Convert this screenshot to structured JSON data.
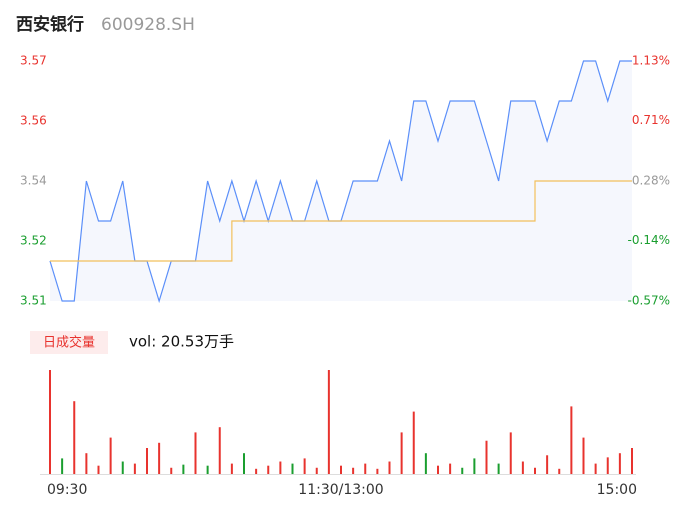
{
  "chart_data": {
    "type": "intraday",
    "title": "西安银行",
    "subtitle": "600928.SH",
    "x": [
      0,
      5,
      10,
      15,
      20,
      25,
      30,
      35,
      40,
      45,
      50,
      55,
      60,
      65,
      70,
      75,
      80,
      85,
      90,
      95,
      100,
      105,
      110,
      115,
      120,
      125,
      130,
      135,
      140,
      145,
      150,
      155,
      160,
      165,
      170,
      175,
      180,
      185,
      190,
      195,
      200,
      205,
      210,
      215,
      220,
      225,
      230,
      235,
      240
    ],
    "xlim": [
      0,
      240
    ],
    "xticks": [
      {
        "value": 0,
        "label": "09:30"
      },
      {
        "value": 120,
        "label": "11:30/13:00"
      },
      {
        "value": 240,
        "label": "15:00"
      }
    ],
    "series": [
      {
        "name": "price",
        "color": "#5b8ff9",
        "values": [
          3.52,
          3.51,
          3.51,
          3.54,
          3.53,
          3.53,
          3.54,
          3.52,
          3.52,
          3.51,
          3.52,
          3.52,
          3.52,
          3.54,
          3.53,
          3.54,
          3.53,
          3.54,
          3.53,
          3.54,
          3.53,
          3.53,
          3.54,
          3.53,
          3.53,
          3.54,
          3.54,
          3.54,
          3.55,
          3.54,
          3.56,
          3.56,
          3.55,
          3.56,
          3.56,
          3.56,
          3.55,
          3.54,
          3.56,
          3.56,
          3.56,
          3.55,
          3.56,
          3.56,
          3.57,
          3.57,
          3.56,
          3.57,
          3.57
        ]
      },
      {
        "name": "average",
        "color": "#f2c05c",
        "values": [
          3.52,
          3.52,
          3.52,
          3.52,
          3.52,
          3.52,
          3.52,
          3.52,
          3.52,
          3.52,
          3.52,
          3.52,
          3.52,
          3.52,
          3.52,
          3.53,
          3.53,
          3.53,
          3.53,
          3.53,
          3.53,
          3.53,
          3.53,
          3.53,
          3.53,
          3.53,
          3.53,
          3.53,
          3.53,
          3.53,
          3.53,
          3.53,
          3.53,
          3.53,
          3.53,
          3.53,
          3.53,
          3.53,
          3.53,
          3.53,
          3.54,
          3.54,
          3.54,
          3.54,
          3.54,
          3.54,
          3.54,
          3.54,
          3.54
        ]
      }
    ],
    "area_color": "#f5f7fd",
    "ylim": [
      3.51,
      3.57
    ],
    "yticks": [
      {
        "value": 3.51,
        "label": "3.51"
      },
      {
        "value": 3.525,
        "label": "3.52"
      },
      {
        "value": 3.54,
        "label": "3.54"
      },
      {
        "value": 3.555,
        "label": "3.56"
      },
      {
        "value": 3.57,
        "label": "3.57"
      }
    ],
    "y2lim": [
      -0.57,
      1.13
    ],
    "y2ticks": [
      {
        "value": -0.57,
        "label": "-0.57%"
      },
      {
        "value": -0.14,
        "label": "-0.14%"
      },
      {
        "value": 0.28,
        "label": "0.28%"
      },
      {
        "value": 0.71,
        "label": "0.71%"
      },
      {
        "value": 1.13,
        "label": "1.13%"
      }
    ],
    "tick_colors": [
      "#1a9e2f",
      "#1a9e2f",
      "#999999",
      "#e8332e",
      "#e8332e"
    ],
    "volume": {
      "title": "日成交量",
      "summary": "vol: 20.53万手",
      "ylim": [
        0,
        100
      ],
      "values": [
        100,
        15,
        70,
        20,
        8,
        35,
        12,
        10,
        25,
        30,
        6,
        9,
        40,
        8,
        45,
        10,
        20,
        5,
        8,
        12,
        10,
        15,
        6,
        100,
        8,
        6,
        10,
        5,
        12,
        40,
        60,
        20,
        8,
        10,
        6,
        15,
        32,
        10,
        40,
        12,
        6,
        18,
        5,
        65,
        35,
        10,
        16,
        20,
        25
      ],
      "colors": [
        "#e8332e",
        "#1a9e2f",
        "#e8332e",
        "#e8332e",
        "#e8332e",
        "#e8332e",
        "#1a9e2f",
        "#e8332e",
        "#e8332e",
        "#e8332e",
        "#e8332e",
        "#1a9e2f",
        "#e8332e",
        "#1a9e2f",
        "#e8332e",
        "#e8332e",
        "#1a9e2f",
        "#e8332e",
        "#e8332e",
        "#e8332e",
        "#1a9e2f",
        "#e8332e",
        "#e8332e",
        "#e8332e",
        "#e8332e",
        "#e8332e",
        "#e8332e",
        "#e8332e",
        "#e8332e",
        "#e8332e",
        "#e8332e",
        "#1a9e2f",
        "#e8332e",
        "#e8332e",
        "#1a9e2f",
        "#1a9e2f",
        "#e8332e",
        "#1a9e2f",
        "#e8332e",
        "#e8332e",
        "#e8332e",
        "#e8332e",
        "#e8332e",
        "#e8332e",
        "#e8332e",
        "#e8332e",
        "#e8332e",
        "#e8332e",
        "#e8332e"
      ]
    }
  }
}
